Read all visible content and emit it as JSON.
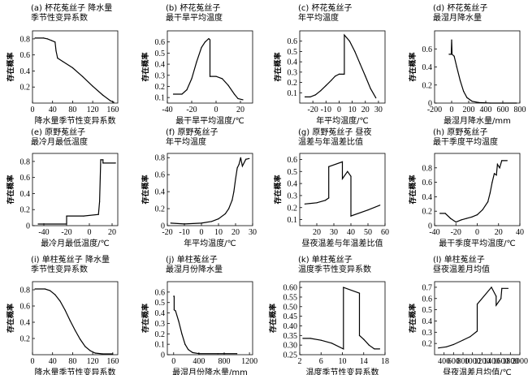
{
  "chart_data": [
    {
      "type": "line",
      "title_lines": [
        "(a) 杯花菟丝子 降水量",
        "季节性变异系数"
      ],
      "xlabel": "降水量季节性变异系数",
      "ylabel": "存在概率",
      "xlim": [
        0,
        170
      ],
      "ylim": [
        0,
        0.9
      ],
      "xticks": [
        0,
        40,
        80,
        120,
        160
      ],
      "yticks": [
        0.2,
        0.4,
        0.6,
        0.8
      ],
      "ytick_labels": [
        "0.2",
        "0.4",
        "0.6",
        "0.8"
      ],
      "series": [
        {
          "points": [
            [
              5,
              0.81
            ],
            [
              22,
              0.81
            ],
            [
              30,
              0.8
            ],
            [
              38,
              0.78
            ],
            [
              45,
              0.76
            ],
            [
              47,
              0.65
            ],
            [
              50,
              0.56
            ],
            [
              60,
              0.52
            ],
            [
              80,
              0.44
            ],
            [
              100,
              0.33
            ],
            [
              120,
              0.21
            ],
            [
              140,
              0.1
            ],
            [
              155,
              0.03
            ],
            [
              162,
              0.01
            ]
          ]
        }
      ]
    },
    {
      "type": "line",
      "title_lines": [
        "(b) 杯花菟丝子",
        "最干旱平均温度"
      ],
      "xlabel": "最干旱平均温度/℃",
      "ylabel": "存在概率",
      "xlim": [
        -40,
        30
      ],
      "ylim": [
        0.05,
        0.7
      ],
      "xticks": [
        -40,
        -20,
        0,
        20
      ],
      "yticks": [
        0.1,
        0.2,
        0.3,
        0.4,
        0.5,
        0.6
      ],
      "ytick_labels": [
        "0.1",
        "0.2",
        "0.3",
        "0.4",
        "0.5",
        "0.6"
      ],
      "series": [
        {
          "points": [
            [
              -35,
              0.13
            ],
            [
              -28,
              0.13
            ],
            [
              -24,
              0.17
            ],
            [
              -20,
              0.27
            ],
            [
              -16,
              0.42
            ],
            [
              -12,
              0.55
            ],
            [
              -9,
              0.6
            ],
            [
              -6,
              0.63
            ],
            [
              -5,
              0.62
            ],
            [
              -5,
              0.29
            ],
            [
              0,
              0.29
            ],
            [
              5,
              0.27
            ],
            [
              10,
              0.21
            ],
            [
              15,
              0.13
            ],
            [
              18,
              0.09
            ],
            [
              22,
              0.08
            ]
          ]
        }
      ]
    },
    {
      "type": "line",
      "title_lines": [
        "(c) 杯花菟丝子",
        "年平均温度"
      ],
      "xlabel": "年平均温度/℃",
      "ylabel": "存在概率",
      "xlim": [
        -30,
        35
      ],
      "ylim": [
        0,
        0.7
      ],
      "xticks": [
        -20,
        -10,
        0,
        10,
        20,
        30
      ],
      "yticks": [
        0.1,
        0.2,
        0.3,
        0.4,
        0.5,
        0.6
      ],
      "ytick_labels": [
        "0.1",
        "0.2",
        "0.3",
        "0.4",
        "0.5",
        "0.6"
      ],
      "series": [
        {
          "points": [
            [
              -26,
              0.06
            ],
            [
              -22,
              0.06
            ],
            [
              -18,
              0.08
            ],
            [
              -14,
              0.12
            ],
            [
              -10,
              0.17
            ],
            [
              -6,
              0.22
            ],
            [
              -3,
              0.26
            ],
            [
              0,
              0.28
            ],
            [
              4,
              0.28
            ],
            [
              4,
              0.66
            ],
            [
              8,
              0.6
            ],
            [
              12,
              0.5
            ],
            [
              16,
              0.38
            ],
            [
              20,
              0.26
            ],
            [
              24,
              0.14
            ],
            [
              28,
              0.05
            ]
          ]
        }
      ]
    },
    {
      "type": "line",
      "title_lines": [
        "(d) 杯花菟丝子",
        "最湿月降水量"
      ],
      "xlabel": "最湿月降水量/mm",
      "ylabel": "存在概率",
      "xlim": [
        -200,
        800
      ],
      "ylim": [
        0,
        0.8
      ],
      "xticks": [
        -200,
        0,
        200,
        400,
        600,
        800
      ],
      "yticks": [
        0,
        0.2,
        0.4,
        0.6
      ],
      "ytick_labels": [
        "0",
        "0.2",
        "0.4",
        "0.6"
      ],
      "series": [
        {
          "points": [
            [
              -30,
              0.54
            ],
            [
              -5,
              0.54
            ],
            [
              0,
              0.7
            ],
            [
              5,
              0.54
            ],
            [
              30,
              0.52
            ],
            [
              60,
              0.4
            ],
            [
              100,
              0.25
            ],
            [
              140,
              0.13
            ],
            [
              180,
              0.06
            ],
            [
              240,
              0.02
            ],
            [
              320,
              0.005
            ],
            [
              450,
              0
            ],
            [
              600,
              0
            ],
            [
              760,
              0
            ]
          ]
        }
      ]
    },
    {
      "type": "line",
      "title_lines": [
        "(e) 原野菟丝子",
        "最冷月最低温度"
      ],
      "xlabel": "最冷月最低温度/℃",
      "ylabel": "存在概率",
      "xlim": [
        -50,
        25
      ],
      "ylim": [
        0,
        0.9
      ],
      "xticks": [
        -40,
        -20,
        0,
        20
      ],
      "yticks": [
        0,
        0.2,
        0.4,
        0.6,
        0.8
      ],
      "ytick_labels": [
        "0",
        "0.2",
        "0.4",
        "0.6",
        "0.8"
      ],
      "series": [
        {
          "points": [
            [
              -45,
              0.02
            ],
            [
              -20,
              0.02
            ],
            [
              -20,
              0.12
            ],
            [
              -5,
              0.12
            ],
            [
              8,
              0.14
            ],
            [
              9,
              0.3
            ],
            [
              10,
              0.82
            ],
            [
              12,
              0.82
            ],
            [
              12,
              0.78
            ],
            [
              23,
              0.78
            ]
          ]
        }
      ]
    },
    {
      "type": "line",
      "title_lines": [
        "(f) 原野菟丝子",
        "年平均温度"
      ],
      "xlabel": "年平均温度/℃",
      "ylabel": "存在概率",
      "xlim": [
        -20,
        30
      ],
      "ylim": [
        0,
        0.85
      ],
      "xticks": [
        -20,
        -10,
        0,
        10,
        20,
        30
      ],
      "yticks": [
        0,
        0.2,
        0.4,
        0.6,
        0.8
      ],
      "ytick_labels": [
        "0",
        "0.2",
        "0.4",
        "0.6",
        "0.8"
      ],
      "series": [
        {
          "points": [
            [
              -18,
              0.03
            ],
            [
              -10,
              0.02
            ],
            [
              0,
              0.03
            ],
            [
              6,
              0.05
            ],
            [
              10,
              0.08
            ],
            [
              14,
              0.14
            ],
            [
              16,
              0.2
            ],
            [
              18,
              0.3
            ],
            [
              19,
              0.4
            ],
            [
              20,
              0.55
            ],
            [
              21,
              0.68
            ],
            [
              22,
              0.72
            ],
            [
              23,
              0.8
            ],
            [
              24,
              0.7
            ],
            [
              26,
              0.78
            ],
            [
              28,
              0.79
            ]
          ]
        }
      ]
    },
    {
      "type": "line",
      "title_lines": [
        "(g) 原野菟丝子 昼夜",
        "温差与年温差比值"
      ],
      "xlabel": "昼夜温差与年温差比值",
      "ylabel": "存在概率",
      "xlim": [
        10,
        60
      ],
      "ylim": [
        0.05,
        0.65
      ],
      "xticks": [
        20,
        30,
        40,
        50,
        60
      ],
      "yticks": [
        0.1,
        0.2,
        0.3,
        0.4,
        0.5,
        0.6
      ],
      "ytick_labels": [
        "0.1",
        "0.2",
        "0.3",
        "0.4",
        "0.5",
        "0.6"
      ],
      "series": [
        {
          "points": [
            [
              13,
              0.23
            ],
            [
              20,
              0.24
            ],
            [
              25,
              0.26
            ],
            [
              27,
              0.28
            ],
            [
              27,
              0.54
            ],
            [
              35,
              0.58
            ],
            [
              35,
              0.44
            ],
            [
              38,
              0.5
            ],
            [
              40,
              0.46
            ],
            [
              40,
              0.13
            ],
            [
              50,
              0.18
            ],
            [
              57,
              0.22
            ]
          ]
        }
      ]
    },
    {
      "type": "line",
      "title_lines": [
        "(h) 原野菟丝子",
        "最干季度平均温度"
      ],
      "xlabel": "最干季度平均温度/℃",
      "ylabel": "存在概率",
      "xlim": [
        -40,
        40
      ],
      "ylim": [
        0,
        1.0
      ],
      "xticks": [
        -40,
        -20,
        0,
        20,
        40
      ],
      "yticks": [
        0,
        0.2,
        0.4,
        0.6,
        0.8
      ],
      "ytick_labels": [
        "0",
        "0.2",
        "0.4",
        "0.6",
        "0.8"
      ],
      "series": [
        {
          "points": [
            [
              -35,
              0.17
            ],
            [
              -30,
              0.17
            ],
            [
              -25,
              0.1
            ],
            [
              -20,
              0.05
            ],
            [
              -15,
              0.08
            ],
            [
              -10,
              0.1
            ],
            [
              -5,
              0.12
            ],
            [
              0,
              0.15
            ],
            [
              5,
              0.22
            ],
            [
              10,
              0.33
            ],
            [
              12,
              0.45
            ],
            [
              14,
              0.6
            ],
            [
              16,
              0.72
            ],
            [
              18,
              0.7
            ],
            [
              19,
              0.85
            ],
            [
              21,
              0.8
            ],
            [
              23,
              0.9
            ],
            [
              28,
              0.9
            ]
          ]
        }
      ]
    },
    {
      "type": "line",
      "title_lines": [
        "(i) 单柱菟丝子 降水量",
        "季节性变异系数"
      ],
      "xlabel": "降水量季节性变异系数",
      "ylabel": "存在概率",
      "xlim": [
        0,
        170
      ],
      "ylim": [
        0,
        0.9
      ],
      "xticks": [
        0,
        40,
        80,
        120,
        160
      ],
      "yticks": [
        0.2,
        0.4,
        0.6,
        0.8
      ],
      "ytick_labels": [
        "0.2",
        "0.4",
        "0.6",
        "0.8"
      ],
      "series": [
        {
          "points": [
            [
              5,
              0.81
            ],
            [
              25,
              0.81
            ],
            [
              35,
              0.79
            ],
            [
              45,
              0.74
            ],
            [
              55,
              0.66
            ],
            [
              65,
              0.55
            ],
            [
              75,
              0.42
            ],
            [
              85,
              0.3
            ],
            [
              95,
              0.19
            ],
            [
              105,
              0.1
            ],
            [
              115,
              0.05
            ],
            [
              125,
              0.02
            ],
            [
              140,
              0.01
            ],
            [
              160,
              0.01
            ]
          ]
        }
      ]
    },
    {
      "type": "line",
      "title_lines": [
        "(j) 单柱菟丝子",
        "最湿月份降水量"
      ],
      "xlabel": "最湿月份降水量/mm",
      "ylabel": "存在概率",
      "xlim": [
        -100,
        1250
      ],
      "ylim": [
        0,
        0.7
      ],
      "xticks": [
        0,
        400,
        800,
        1200
      ],
      "yticks": [
        0,
        0.1,
        0.2,
        0.3,
        0.4,
        0.5,
        0.6
      ],
      "ytick_labels": [
        "0",
        "0.1",
        "0.2",
        "0.3",
        "0.4",
        "0.5",
        "0.6"
      ],
      "series": [
        {
          "points": [
            [
              0,
              0.56
            ],
            [
              8,
              0.56
            ],
            [
              8,
              0.43
            ],
            [
              30,
              0.42
            ],
            [
              80,
              0.32
            ],
            [
              130,
              0.2
            ],
            [
              180,
              0.1
            ],
            [
              230,
              0.05
            ],
            [
              300,
              0.02
            ],
            [
              400,
              0.01
            ],
            [
              700,
              0.01
            ],
            [
              1000,
              0.01
            ]
          ]
        }
      ]
    },
    {
      "type": "line",
      "title_lines": [
        "(k) 单柱菟丝子",
        "温度季节性变异系数"
      ],
      "xlabel": "温度季节性变异系数",
      "ylabel": "存在概率",
      "xlim": [
        2,
        18
      ],
      "ylim": [
        0.25,
        0.63
      ],
      "xticks": [
        2,
        6,
        10,
        14,
        18
      ],
      "yticks": [
        0.25,
        0.3,
        0.35,
        0.4,
        0.45,
        0.5,
        0.55,
        0.6
      ],
      "ytick_labels": [
        "0.25",
        "0.30",
        "0.35",
        "0.40",
        "0.45",
        "0.50",
        "0.55",
        "0.60"
      ],
      "series": [
        {
          "points": [
            [
              2.6,
              0.335
            ],
            [
              4,
              0.335
            ],
            [
              6,
              0.325
            ],
            [
              8,
              0.31
            ],
            [
              10.2,
              0.28
            ],
            [
              10.2,
              0.6
            ],
            [
              13.2,
              0.57
            ],
            [
              13.2,
              0.35
            ],
            [
              14,
              0.33
            ],
            [
              15,
              0.3
            ],
            [
              16,
              0.28
            ],
            [
              17,
              0.28
            ]
          ]
        }
      ]
    },
    {
      "type": "line",
      "title_lines": [
        "(l) 单柱菟丝子",
        "昼夜温差月均值"
      ],
      "xlabel": "昼夜温差月均值/℃",
      "ylabel": "存在概率",
      "xlim": [
        200,
        2000
      ],
      "ylim": [
        0.1,
        0.75
      ],
      "xticks": [
        400,
        600,
        800,
        1000,
        1200,
        1400,
        1600,
        1800,
        2000
      ],
      "yticks": [
        0.2,
        0.3,
        0.4,
        0.5,
        0.6,
        0.7
      ],
      "ytick_labels": [
        "0.2",
        "0.3",
        "0.4",
        "0.5",
        "0.6",
        "0.7"
      ],
      "series": [
        {
          "points": [
            [
              280,
              0.16
            ],
            [
              450,
              0.17
            ],
            [
              600,
              0.19
            ],
            [
              800,
              0.23
            ],
            [
              950,
              0.26
            ],
            [
              1100,
              0.31
            ],
            [
              1100,
              0.55
            ],
            [
              1400,
              0.7
            ],
            [
              1500,
              0.62
            ],
            [
              1500,
              0.54
            ],
            [
              1600,
              0.6
            ],
            [
              1620,
              0.69
            ],
            [
              1750,
              0.69
            ]
          ]
        }
      ]
    }
  ]
}
